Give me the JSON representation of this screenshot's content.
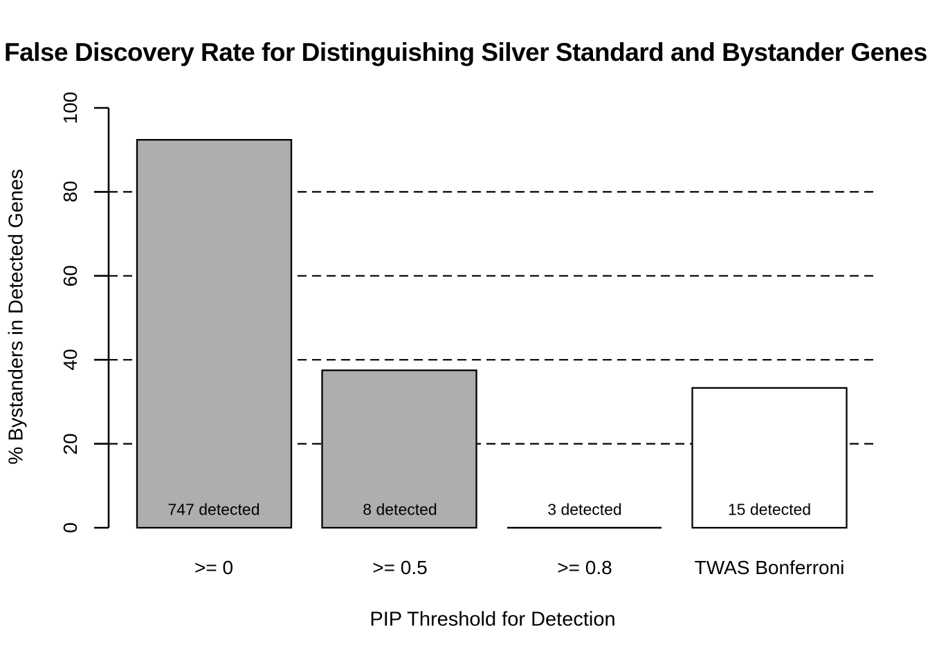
{
  "chart_data": {
    "type": "bar",
    "title": "False Discovery Rate for Distinguishing Silver Standard and Bystander Genes",
    "xlabel": "PIP Threshold for Detection",
    "ylabel": "% Bystanders in Detected Genes",
    "categories": [
      ">= 0",
      ">= 0.5",
      ">= 0.8",
      "TWAS Bonferroni"
    ],
    "values": [
      92.4,
      37.5,
      0,
      33.3
    ],
    "bar_labels": [
      "747 detected",
      "8 detected",
      "3 detected",
      "15 detected"
    ],
    "bar_colors": [
      "#aeaeae",
      "#aeaeae",
      "#aeaeae",
      "#ffffff"
    ],
    "bar_border_color": "#000000",
    "ylim": [
      0,
      100
    ],
    "yticks": [
      0,
      20,
      40,
      60,
      80,
      100
    ],
    "ytick_labels": [
      "0",
      "20",
      "40",
      "60",
      "80",
      "100"
    ],
    "gridlines": [
      20,
      40,
      60,
      80
    ],
    "gridline_style": "dashed",
    "grid_color": "#000000",
    "axis_color": "#000000",
    "text_color": "#000000",
    "background": "#ffffff",
    "legend_position": "none"
  }
}
